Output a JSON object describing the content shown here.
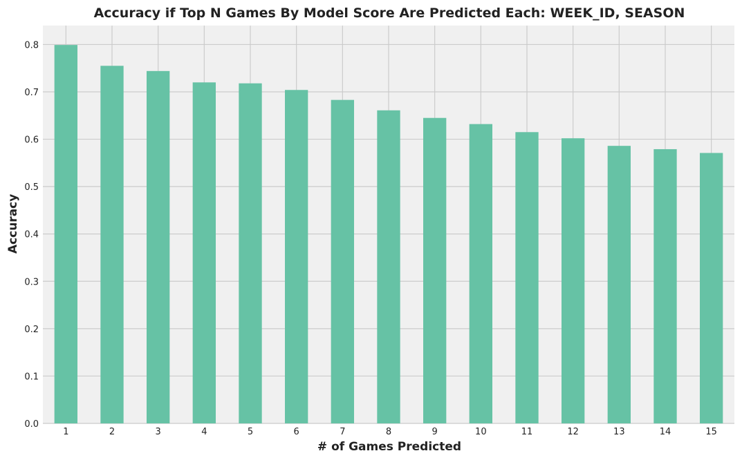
{
  "chart_data": {
    "type": "bar",
    "title": "Accuracy if Top N Games By Model Score Are Predicted Each: WEEK_ID, SEASON",
    "xlabel": "# of Games Predicted",
    "ylabel": "Accuracy",
    "categories": [
      "1",
      "2",
      "3",
      "4",
      "5",
      "6",
      "7",
      "8",
      "9",
      "10",
      "11",
      "12",
      "13",
      "14",
      "15"
    ],
    "values": [
      0.799,
      0.755,
      0.744,
      0.72,
      0.718,
      0.704,
      0.683,
      0.661,
      0.645,
      0.632,
      0.615,
      0.602,
      0.586,
      0.579,
      0.571
    ],
    "yticks": [
      "0.0",
      "0.1",
      "0.2",
      "0.3",
      "0.4",
      "0.5",
      "0.6",
      "0.7",
      "0.8"
    ],
    "ylim": [
      0,
      0.84
    ],
    "grid": true,
    "colors": {
      "bar": "#66c2a5",
      "plot_background": "#f0f0f0",
      "grid": "#cbcbcb"
    }
  }
}
